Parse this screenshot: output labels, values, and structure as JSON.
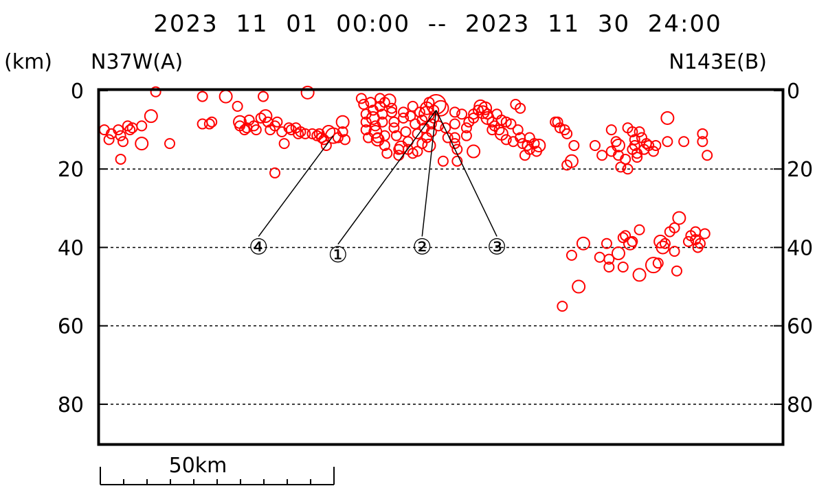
{
  "chart_data": {
    "type": "scatter",
    "title": "2023  11  01  00:00  --  2023  11  30  24:00",
    "y_unit": "(km)",
    "left_label": "N37W(A)",
    "right_label": "N143E(B)",
    "x_unit": "km",
    "xlim": [
      0,
      146
    ],
    "ylim": [
      0,
      90
    ],
    "y_inverted": true,
    "y_ticks": [
      "0",
      "20",
      "40",
      "60",
      "80"
    ],
    "grid_y": [
      20,
      40,
      60,
      80
    ],
    "marker_color": "#ff0000",
    "leader_color": "#000000",
    "scale_bar": {
      "label": "50km",
      "length_km": 50,
      "minor_divisions": 10
    },
    "series": [
      {
        "points": [
          [
            1,
            10,
            1
          ],
          [
            2,
            12.5,
            1
          ],
          [
            2.5,
            11,
            1
          ],
          [
            4,
            10,
            1
          ],
          [
            4.5,
            11.5,
            1
          ],
          [
            5,
            13,
            1
          ],
          [
            6,
            9,
            1
          ],
          [
            6.5,
            10,
            1
          ],
          [
            7,
            9.5,
            1
          ],
          [
            4.5,
            17.5,
            1
          ],
          [
            9,
            9,
            1
          ],
          [
            9,
            13.5,
            2
          ],
          [
            12,
            0.3,
            1
          ],
          [
            11,
            6.5,
            2
          ],
          [
            15,
            13.5,
            1
          ],
          [
            22,
            1.5,
            1
          ],
          [
            22,
            8.5,
            1
          ],
          [
            23.5,
            8.5,
            1
          ],
          [
            24,
            8,
            1
          ],
          [
            27,
            1.5,
            2
          ],
          [
            29.5,
            4,
            1
          ],
          [
            30,
            9,
            1
          ],
          [
            30,
            8,
            2
          ],
          [
            31,
            10,
            1
          ],
          [
            32,
            7.5,
            1
          ],
          [
            31.5,
            9.5,
            1
          ],
          [
            33,
            9,
            1
          ],
          [
            33.5,
            10,
            1
          ],
          [
            35,
            1.5,
            1
          ],
          [
            34.5,
            7,
            1
          ],
          [
            35.5,
            6.5,
            2
          ],
          [
            36,
            8,
            1
          ],
          [
            36.5,
            10,
            1
          ],
          [
            37.5,
            9,
            1
          ],
          [
            37.5,
            21,
            1
          ],
          [
            38,
            8,
            1
          ],
          [
            39,
            10.5,
            1
          ],
          [
            39.5,
            13.5,
            1
          ],
          [
            40.5,
            9.5,
            1
          ],
          [
            41,
            10,
            1
          ],
          [
            42,
            9.5,
            1
          ],
          [
            42.5,
            11,
            1
          ],
          [
            43,
            10.5,
            1
          ],
          [
            44,
            11,
            1
          ],
          [
            44.5,
            0.5,
            2
          ],
          [
            45.5,
            11,
            1
          ],
          [
            46.5,
            11.5,
            1
          ],
          [
            47,
            11,
            1
          ],
          [
            47.5,
            12,
            1
          ],
          [
            48,
            12.5,
            1
          ],
          [
            48.5,
            14,
            1
          ],
          [
            49,
            10.5,
            2
          ],
          [
            50,
            11.5,
            3
          ],
          [
            51,
            12,
            1
          ],
          [
            52,
            8,
            2
          ],
          [
            52,
            10.5,
            1
          ],
          [
            52.5,
            12.5,
            1
          ],
          [
            56,
            2,
            1
          ],
          [
            56.5,
            3.5,
            1
          ],
          [
            57,
            6,
            1
          ],
          [
            57,
            8,
            1
          ],
          [
            57,
            10,
            1
          ],
          [
            57.5,
            12,
            1
          ],
          [
            58,
            3,
            1
          ],
          [
            58.5,
            5,
            1
          ],
          [
            58.5,
            7,
            2
          ],
          [
            59,
            9,
            1
          ],
          [
            59,
            10.5,
            2
          ],
          [
            59.5,
            12,
            1
          ],
          [
            59.5,
            12.5,
            2
          ],
          [
            60,
            2,
            1
          ],
          [
            60,
            4,
            1
          ],
          [
            60.5,
            6,
            1
          ],
          [
            60.5,
            8,
            1
          ],
          [
            61,
            11.5,
            1
          ],
          [
            61,
            14,
            1
          ],
          [
            61.5,
            16,
            1
          ],
          [
            61,
            3,
            1
          ],
          [
            62,
            2.5,
            2
          ],
          [
            62.5,
            4.5,
            1
          ],
          [
            62.5,
            5.5,
            1
          ],
          [
            63,
            8,
            1
          ],
          [
            63,
            9.5,
            1
          ],
          [
            63.5,
            11.5,
            1
          ],
          [
            64,
            15,
            1
          ],
          [
            64,
            16.5,
            1
          ],
          [
            64.5,
            14.5,
            2
          ],
          [
            65,
            5.5,
            1
          ],
          [
            65,
            7,
            1
          ],
          [
            65.5,
            10.5,
            1
          ],
          [
            66,
            13,
            1
          ],
          [
            66,
            15,
            1
          ],
          [
            66.5,
            6.5,
            1
          ],
          [
            67,
            4,
            1
          ],
          [
            67,
            16,
            1
          ],
          [
            67.5,
            8.5,
            1
          ],
          [
            68,
            11,
            1
          ],
          [
            68,
            15.5,
            1
          ],
          [
            68.5,
            5.5,
            1
          ],
          [
            69,
            7.5,
            1
          ],
          [
            69,
            13.5,
            1
          ],
          [
            69.5,
            9.5,
            1
          ],
          [
            70,
            4.5,
            2
          ],
          [
            70,
            6,
            3
          ],
          [
            70,
            12,
            1
          ],
          [
            70.5,
            3,
            1
          ],
          [
            70.5,
            14,
            2
          ],
          [
            71,
            8.5,
            1
          ],
          [
            71,
            10.5,
            1
          ],
          [
            71.5,
            5,
            1
          ],
          [
            71.5,
            7,
            1
          ],
          [
            72,
            3.5,
            4
          ],
          [
            73,
            4.5,
            3
          ],
          [
            72.5,
            9,
            1
          ],
          [
            73.5,
            18,
            1
          ],
          [
            74,
            9.5,
            1
          ],
          [
            74.5,
            12,
            1
          ],
          [
            76,
            5.5,
            1
          ],
          [
            76,
            8.5,
            1
          ],
          [
            76,
            12,
            1
          ],
          [
            76,
            13.5,
            1
          ],
          [
            76.5,
            15,
            1
          ],
          [
            76.5,
            18,
            1
          ],
          [
            77.5,
            6,
            1
          ],
          [
            78.5,
            9.5,
            1
          ],
          [
            78.5,
            11.5,
            1
          ],
          [
            79,
            8,
            1
          ],
          [
            80,
            6,
            1
          ],
          [
            80,
            7,
            1
          ],
          [
            80,
            15.5,
            2
          ],
          [
            81,
            5,
            1
          ],
          [
            81.5,
            4,
            2
          ],
          [
            82,
            5.5,
            2
          ],
          [
            82.5,
            4.5,
            2
          ],
          [
            83,
            6,
            1
          ],
          [
            83,
            7,
            2
          ],
          [
            84,
            8,
            1
          ],
          [
            84,
            10,
            1
          ],
          [
            84.5,
            9,
            1
          ],
          [
            85,
            6,
            1
          ],
          [
            85.5,
            10,
            1
          ],
          [
            86,
            7.5,
            1
          ],
          [
            86,
            11,
            2
          ],
          [
            87,
            8,
            1
          ],
          [
            87,
            12.5,
            1
          ],
          [
            88,
            8.5,
            1
          ],
          [
            88.5,
            13,
            1
          ],
          [
            89,
            3.5,
            1
          ],
          [
            89.5,
            10,
            1
          ],
          [
            90,
            4.5,
            1
          ],
          [
            90,
            12,
            1
          ],
          [
            90.5,
            13.5,
            1
          ],
          [
            91,
            16.5,
            1
          ],
          [
            91.5,
            14,
            1
          ],
          [
            92,
            15,
            1
          ],
          [
            92,
            12,
            1
          ],
          [
            93,
            13.5,
            1
          ],
          [
            93.5,
            15.5,
            1
          ],
          [
            94,
            14,
            2
          ],
          [
            97.5,
            8,
            1
          ],
          [
            98,
            8,
            1
          ],
          [
            98.5,
            9.5,
            1
          ],
          [
            99.5,
            10,
            1
          ],
          [
            100,
            11,
            1
          ],
          [
            100,
            19,
            1
          ],
          [
            101,
            18,
            2
          ],
          [
            101.5,
            14,
            1
          ],
          [
            101,
            42,
            1
          ],
          [
            103.5,
            39,
            2
          ],
          [
            102.5,
            50,
            2
          ],
          [
            99,
            55,
            1
          ],
          [
            106,
            14,
            1
          ],
          [
            107.5,
            16.5,
            1
          ],
          [
            107,
            42.5,
            1
          ],
          [
            108.5,
            39,
            1
          ],
          [
            109,
            43,
            1
          ],
          [
            109,
            45,
            1
          ],
          [
            109.5,
            10,
            1
          ],
          [
            109.5,
            15.5,
            1
          ],
          [
            110.5,
            13,
            1
          ],
          [
            111,
            14,
            2
          ],
          [
            111,
            16.5,
            1
          ],
          [
            111,
            41.5,
            2
          ],
          [
            111.5,
            19.5,
            1
          ],
          [
            112,
            37.5,
            1
          ],
          [
            112,
            45,
            1
          ],
          [
            112.5,
            17.5,
            1
          ],
          [
            112.5,
            37,
            1
          ],
          [
            113,
            9.5,
            1
          ],
          [
            113,
            20,
            1
          ],
          [
            114,
            10.5,
            1
          ],
          [
            114,
            38.5,
            1
          ],
          [
            113.5,
            39,
            2
          ],
          [
            114,
            15,
            1
          ],
          [
            114.5,
            12.5,
            1
          ],
          [
            114.5,
            14,
            1
          ],
          [
            115,
            16,
            1
          ],
          [
            115.5,
            10.5,
            1
          ],
          [
            115,
            17,
            1
          ],
          [
            115.5,
            35.5,
            1
          ],
          [
            115.5,
            47,
            2
          ],
          [
            116,
            12,
            1
          ],
          [
            116.5,
            15,
            1
          ],
          [
            117,
            13.5,
            1
          ],
          [
            117.5,
            14,
            1
          ],
          [
            118.5,
            44.5,
            3
          ],
          [
            118.5,
            15.5,
            1
          ],
          [
            119,
            14,
            1
          ],
          [
            119.5,
            44,
            1
          ],
          [
            120,
            38.5,
            2
          ],
          [
            120.5,
            40,
            2
          ],
          [
            121,
            39,
            1
          ],
          [
            121.5,
            7,
            2
          ],
          [
            121.5,
            13,
            1
          ],
          [
            122,
            36,
            1
          ],
          [
            123,
            35,
            1
          ],
          [
            123,
            41,
            1
          ],
          [
            123.5,
            46,
            1
          ],
          [
            124,
            32.5,
            2
          ],
          [
            125,
            13,
            1
          ],
          [
            126,
            38.5,
            1
          ],
          [
            126.5,
            37,
            1
          ],
          [
            127.5,
            36,
            1
          ],
          [
            127.5,
            38,
            1
          ],
          [
            128,
            40,
            1
          ],
          [
            128.5,
            39,
            1
          ],
          [
            129,
            11,
            1
          ],
          [
            129,
            13,
            1
          ],
          [
            129.5,
            36.5,
            1
          ],
          [
            130,
            16.5,
            1
          ]
        ]
      }
    ],
    "annotations": [
      {
        "label": "①",
        "target": [
          72,
          5
        ],
        "at": [
          51,
          42
        ]
      },
      {
        "label": "②",
        "target": [
          72,
          5
        ],
        "at": [
          69,
          40
        ]
      },
      {
        "label": "③",
        "target": [
          72,
          5
        ],
        "at": [
          85,
          40
        ]
      },
      {
        "label": "④",
        "target": [
          50,
          11.5
        ],
        "at": [
          34,
          40
        ]
      }
    ]
  }
}
